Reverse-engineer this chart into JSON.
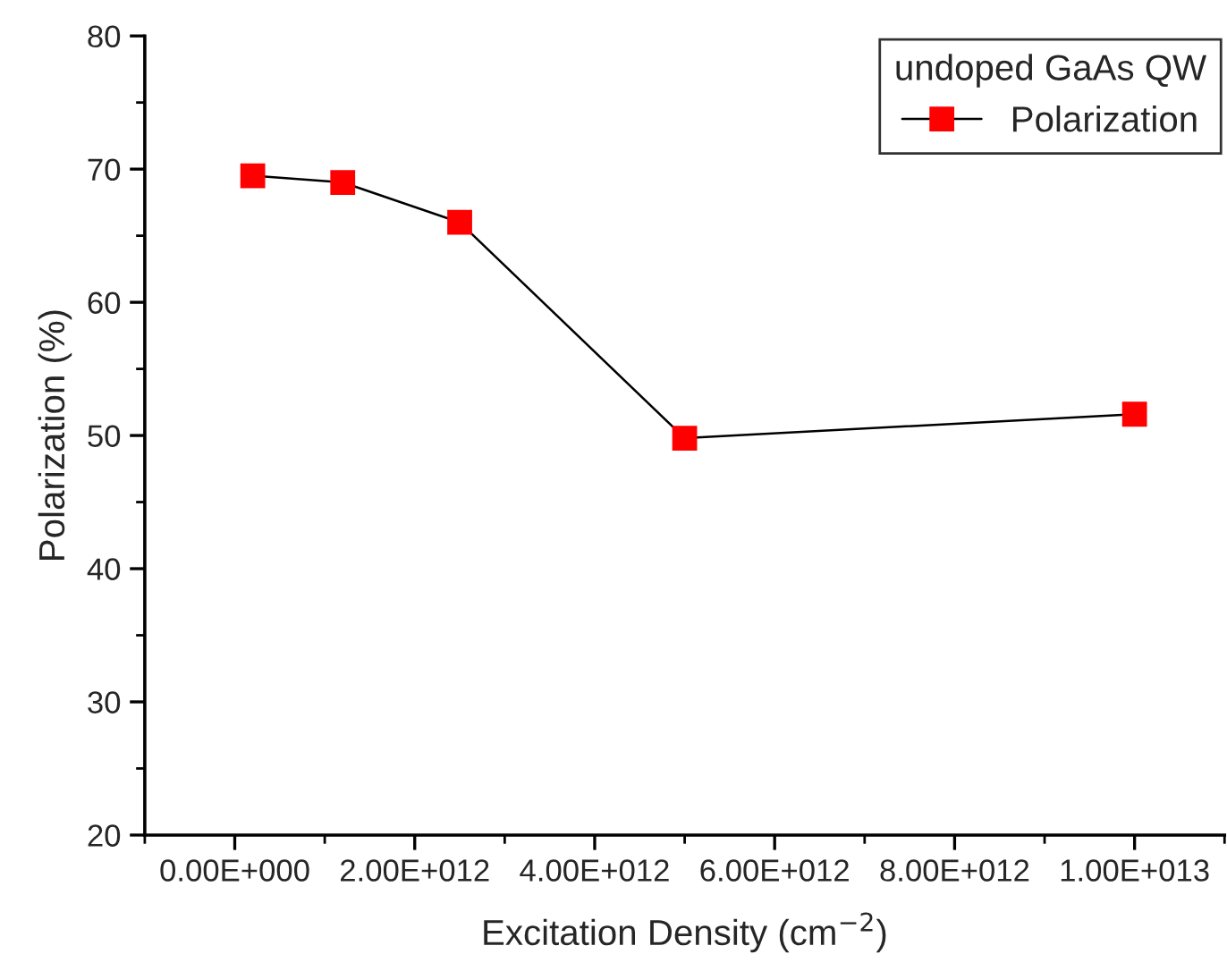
{
  "chart_data": {
    "type": "line",
    "xlabel": "Excitation Density (cm$^{−2}$)",
    "ylabel": "Polarization (%)",
    "legend_title": "undoped GaAs QW",
    "x": [
      200000000000.0,
      1200000000000.0,
      2500000000000.0,
      5000000000000.0,
      10000000000000.0
    ],
    "series": [
      {
        "name": "Polarization",
        "color": "#ff0000",
        "values": [
          69.5,
          69.0,
          66.0,
          49.8,
          51.6
        ]
      }
    ],
    "marker": "square",
    "line_style": "solid",
    "legend": "top right",
    "grid": false,
    "xlim": [
      -1000000000000.0,
      11000000000000.0
    ],
    "xticks": [
      {
        "value": 0,
        "label": "0.00E+000"
      },
      {
        "value": 2000000000000.0,
        "label": "2.00E+012"
      },
      {
        "value": 4000000000000.0,
        "label": "4.00E+012"
      },
      {
        "value": 6000000000000.0,
        "label": "6.00E+012"
      },
      {
        "value": 8000000000000.0,
        "label": "8.00E+012"
      },
      {
        "value": 10000000000000.0,
        "label": "1.00E+013"
      }
    ],
    "ylim": [
      20,
      80
    ],
    "yticks": [
      20,
      30,
      40,
      50,
      60,
      70,
      80
    ]
  }
}
